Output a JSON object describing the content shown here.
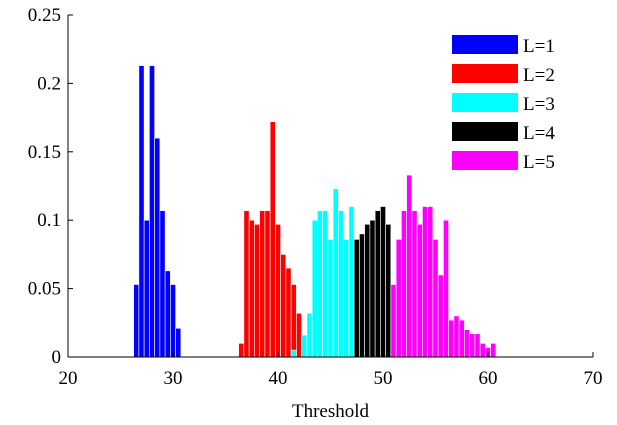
{
  "chart_data": {
    "type": "bar",
    "xlabel": "Threshold",
    "ylabel": "",
    "xlim": [
      20,
      70
    ],
    "ylim": [
      0,
      0.25
    ],
    "xticks": [
      20,
      30,
      40,
      50,
      60,
      70
    ],
    "yticks": [
      0,
      0.05,
      0.1,
      0.15,
      0.2,
      0.25
    ],
    "xtick_labels": [
      "20",
      "30",
      "40",
      "50",
      "60",
      "70"
    ],
    "ytick_labels": [
      "0",
      "0.05",
      "0.1",
      "0.15",
      "0.2",
      "0.25"
    ],
    "grid": false,
    "legend_position": "top-right",
    "bin_width": 0.5,
    "series": [
      {
        "name": "L=1",
        "color": "#0000ff",
        "x": [
          26.5,
          27.0,
          27.5,
          28.0,
          28.5,
          29.0,
          29.5,
          30.0,
          30.5
        ],
        "values": [
          0.053,
          0.213,
          0.1,
          0.213,
          0.16,
          0.107,
          0.063,
          0.053,
          0.021
        ]
      },
      {
        "name": "L=2",
        "color": "#ff0000",
        "x": [
          36.5,
          37.0,
          37.5,
          38.0,
          38.5,
          39.0,
          39.5,
          40.0,
          40.5,
          41.0,
          41.5,
          42.0
        ],
        "values": [
          0.01,
          0.107,
          0.1,
          0.097,
          0.107,
          0.107,
          0.172,
          0.097,
          0.075,
          0.065,
          0.053,
          0.032
        ]
      },
      {
        "name": "L=3",
        "color": "#00ffff",
        "x": [
          41.5,
          42.5,
          43.0,
          43.5,
          44.0,
          44.5,
          45.0,
          45.5,
          46.0,
          46.5,
          47.0
        ],
        "values": [
          0.005,
          0.016,
          0.032,
          0.1,
          0.107,
          0.107,
          0.086,
          0.123,
          0.107,
          0.086,
          0.11
        ]
      },
      {
        "name": "L=4",
        "color": "#000000",
        "x": [
          47.5,
          48.0,
          48.5,
          49.0,
          49.5,
          50.0,
          50.5,
          51.0
        ],
        "values": [
          0.086,
          0.09,
          0.097,
          0.1,
          0.107,
          0.11,
          0.097,
          0.01
        ]
      },
      {
        "name": "L=5",
        "color": "#ff00ff",
        "x": [
          51.0,
          51.5,
          52.0,
          52.5,
          53.0,
          53.5,
          54.0,
          54.5,
          55.0,
          55.5,
          56.0,
          56.5,
          57.0,
          57.5,
          58.0,
          58.5,
          59.0,
          59.5,
          60.0,
          60.5
        ],
        "values": [
          0.053,
          0.086,
          0.107,
          0.133,
          0.107,
          0.097,
          0.11,
          0.11,
          0.086,
          0.06,
          0.1,
          0.027,
          0.03,
          0.027,
          0.02,
          0.017,
          0.017,
          0.01,
          0.007,
          0.01
        ]
      }
    ]
  }
}
